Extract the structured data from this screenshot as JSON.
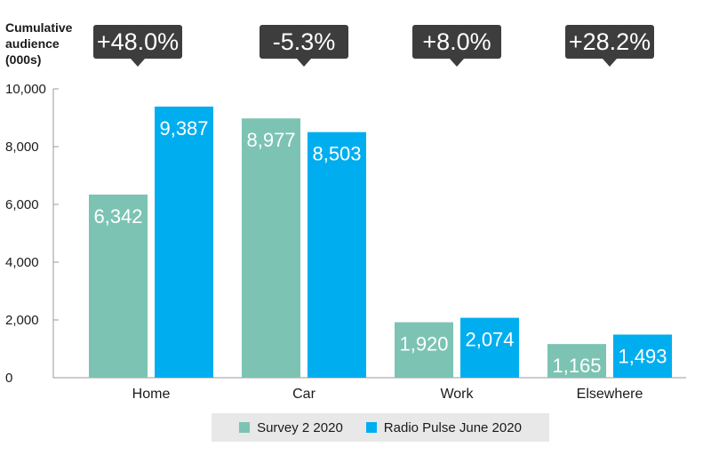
{
  "chart_data": {
    "type": "bar",
    "ylabel_lines": [
      "Cumulative",
      "audience",
      "(000s)"
    ],
    "categories": [
      "Home",
      "Car",
      "Work",
      "Elsewhere"
    ],
    "series": [
      {
        "name": "Survey 2 2020",
        "color": "#7cc3b3",
        "values": [
          6342,
          8977,
          1920,
          1165
        ],
        "labels": [
          "6,342",
          "8,977",
          "1,920",
          "1,165"
        ]
      },
      {
        "name": "Radio Pulse June 2020",
        "color": "#00aeef",
        "values": [
          9387,
          8503,
          2074,
          1493
        ],
        "labels": [
          "9,387",
          "8,503",
          "2,074",
          "1,493"
        ]
      }
    ],
    "changes": [
      "+48.0%",
      "-5.3%",
      "+8.0%",
      "+28.2%"
    ],
    "yticks": [
      0,
      2000,
      4000,
      6000,
      8000,
      10000
    ],
    "ytick_labels": [
      "0",
      "2,000",
      "4,000",
      "6,000",
      "8,000",
      "10,000"
    ],
    "ylim": [
      0,
      10000
    ],
    "grid": false,
    "legend_position": "bottom"
  }
}
